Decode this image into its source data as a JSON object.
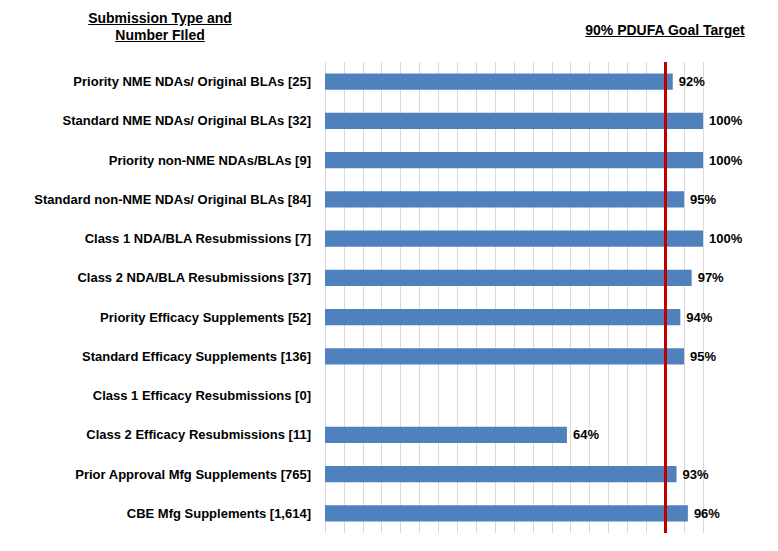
{
  "chart_data": {
    "type": "bar",
    "orientation": "horizontal",
    "ylabel": "Submission Type and Number FIled",
    "categories": [
      "Priority NME NDAs/ Original BLAs [25]",
      "Standard NME NDAs/ Original BLAs [32]",
      "Priority non-NME NDAs/BLAs [9]",
      "Standard non-NME NDAs/ Original BLAs [84]",
      "Class 1 NDA/BLA Resubmissions [7]",
      "Class 2 NDA/BLA Resubmissions [37]",
      "Priority Efficacy Supplements [52]",
      "Standard Efficacy Supplements [136]",
      "Class 1 Efficacy Resubmissions [0]",
      "Class 2 Efficacy Resubmissions [11]",
      "Prior Approval Mfg Supplements [765]",
      "CBE Mfg Supplements [1,614]"
    ],
    "values": [
      92,
      100,
      100,
      95,
      100,
      97,
      94,
      95,
      null,
      64,
      93,
      96
    ],
    "value_labels": [
      "92%",
      "100%",
      "100%",
      "95%",
      "100%",
      "97%",
      "94%",
      "95%",
      null,
      "64%",
      "93%",
      "96%"
    ],
    "color": "#4f81bd",
    "xlim": [
      0,
      100
    ],
    "xticks": [
      0,
      5,
      10,
      15,
      20,
      25,
      30,
      35,
      40,
      45,
      50,
      55,
      60,
      65,
      70,
      75,
      80,
      85,
      90,
      95,
      100
    ],
    "grid": true,
    "tick_labels": "y",
    "data_labels": true,
    "target_line": {
      "value": 90,
      "label": "90% PDUFA Goal Target",
      "color": "#c00000"
    }
  }
}
